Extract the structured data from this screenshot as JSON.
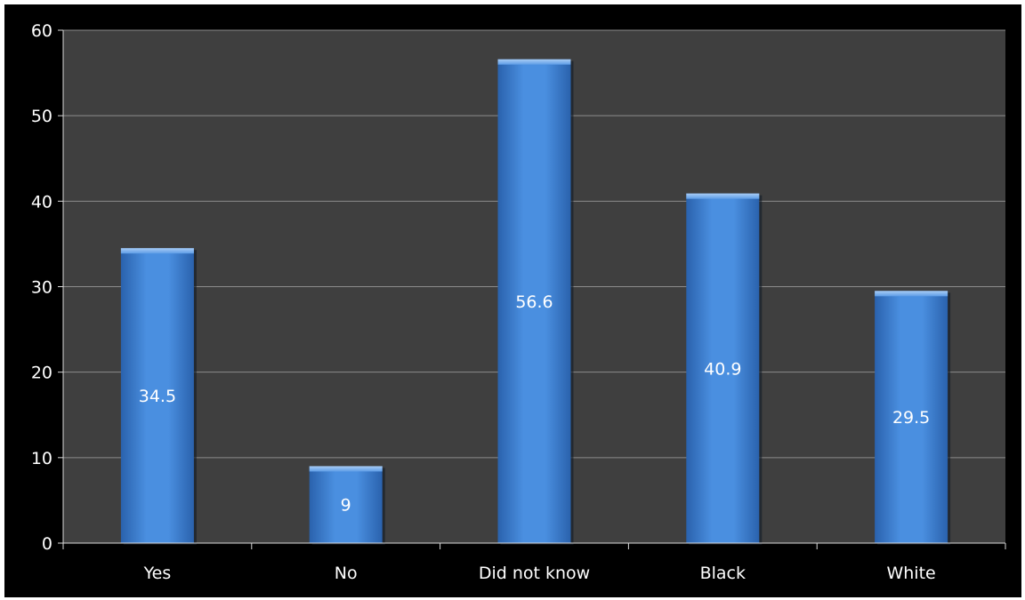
{
  "chart_data": {
    "type": "bar",
    "categories": [
      "Yes",
      "No",
      "Did not know",
      "Black",
      "White"
    ],
    "values": [
      34.5,
      9,
      56.6,
      40.9,
      29.5
    ],
    "data_labels": [
      "34.5",
      "9",
      "56.6",
      "40.9",
      "29.5"
    ],
    "ylim": [
      0,
      60
    ],
    "y_ticks": [
      0,
      10,
      20,
      30,
      40,
      50,
      60
    ],
    "title": "",
    "xlabel": "",
    "ylabel": "",
    "grid": true,
    "legend": false,
    "colors": {
      "background": "#000000",
      "plot_area": "#3f3f3f",
      "bar": "#3b7fd4",
      "bar_highlight": "#8ab8ee",
      "gridline": "#8c8c8c",
      "axis": "#d9d9d9",
      "text": "#ffffff"
    }
  }
}
